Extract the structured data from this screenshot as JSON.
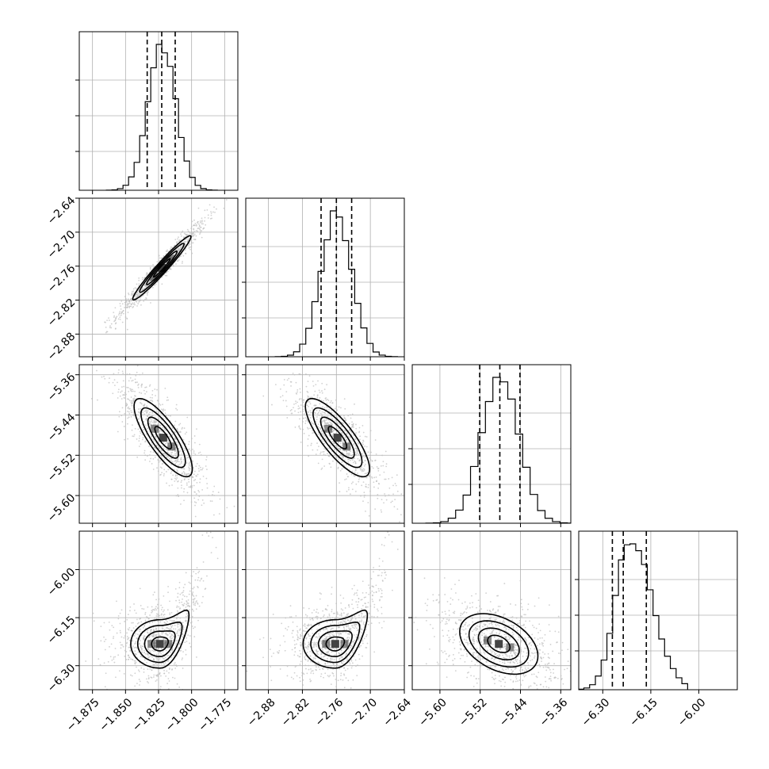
{
  "chart_data": {
    "type": "corner",
    "parameters": [
      {
        "range": [
          -1.885,
          -1.765
        ],
        "ticks": [
          -1.875,
          -1.85,
          -1.825,
          -1.8,
          -1.775
        ],
        "tick_labels": [
          "−1.875",
          "−1.850",
          "−1.825",
          "−1.800",
          "−1.775"
        ],
        "mean": -1.8225,
        "sd": 0.0105,
        "quantiles": [
          -1.8336,
          -1.8226,
          -1.8124
        ]
      },
      {
        "range": [
          -2.92,
          -2.64
        ],
        "ticks": [
          -2.88,
          -2.82,
          -2.76,
          -2.7,
          -2.64
        ],
        "tick_labels": [
          "−2.88",
          "−2.82",
          "−2.76",
          "−2.70",
          "−2.64"
        ],
        "mean": -2.76,
        "sd": 0.027,
        "quantiles": [
          -2.787,
          -2.76,
          -2.733
        ]
      },
      {
        "range": [
          -5.655,
          -5.34
        ],
        "ticks": [
          -5.6,
          -5.52,
          -5.44,
          -5.36
        ],
        "tick_labels": [
          "−5.60",
          "−5.52",
          "−5.44",
          "−5.36"
        ],
        "mean": -5.48,
        "sd": 0.037,
        "quantiles": [
          -5.521,
          -5.481,
          -5.441
        ]
      },
      {
        "range": [
          -6.375,
          -5.88
        ],
        "ticks": [
          -6.3,
          -6.15,
          -6.0
        ],
        "tick_labels": [
          "−6.30",
          "−6.15",
          "−6.00"
        ],
        "mean": -6.215,
        "sd": 0.045,
        "quantiles": [
          -6.27,
          -6.236,
          -6.164
        ]
      }
    ],
    "pairs": [
      {
        "x": 0,
        "y": 1,
        "center": [
          -1.8225,
          -2.763
        ],
        "corr": 0.97
      },
      {
        "x": 0,
        "y": 2,
        "center": [
          -1.8215,
          -5.485
        ],
        "corr": -0.8
      },
      {
        "x": 1,
        "y": 2,
        "center": [
          -2.758,
          -5.485
        ],
        "corr": -0.8
      },
      {
        "x": 0,
        "y": 3,
        "center": [
          -1.824,
          -6.232
        ],
        "corr": 0.55
      },
      {
        "x": 1,
        "y": 3,
        "center": [
          -2.762,
          -6.232
        ],
        "corr": 0.55
      },
      {
        "x": 2,
        "y": 3,
        "center": [
          -5.483,
          -6.232
        ],
        "corr": -0.4
      }
    ],
    "grid": true,
    "colors": {
      "line": "#000000",
      "points": "#bdbdbd",
      "density": "#3a3a3a"
    }
  }
}
